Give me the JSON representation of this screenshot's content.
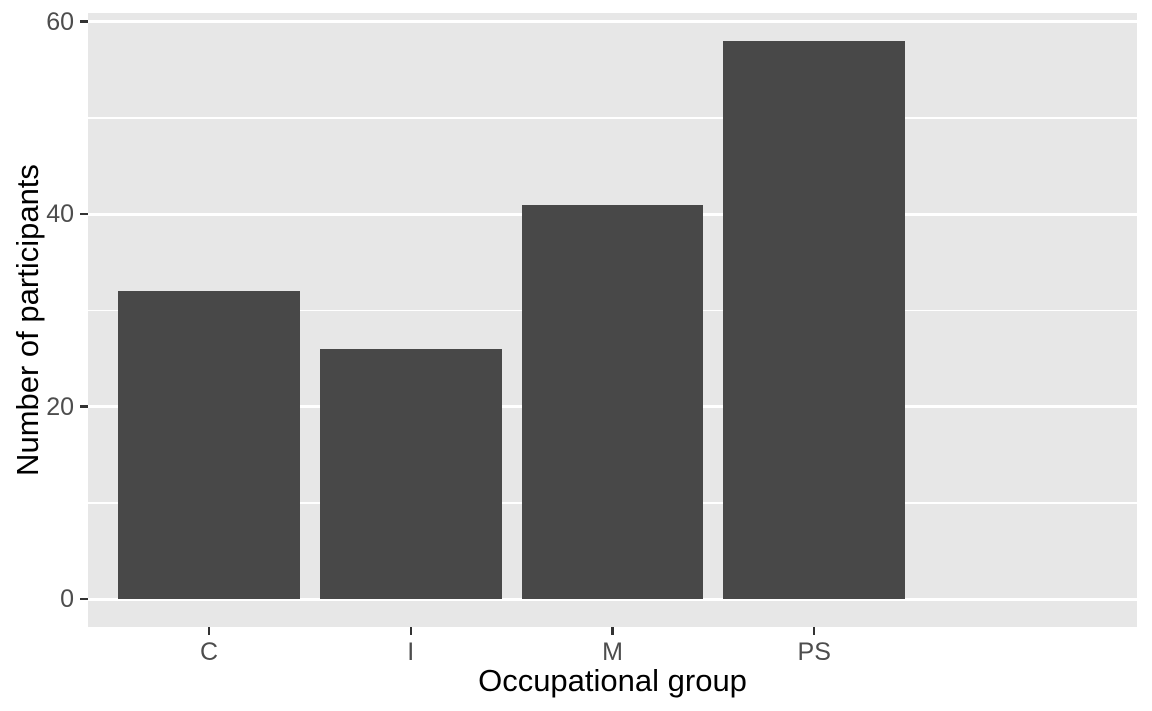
{
  "chart_data": {
    "type": "bar",
    "title": "",
    "xlabel": "Occupational group",
    "ylabel": "Number of participants",
    "categories": [
      "C",
      "I",
      "M",
      "PS"
    ],
    "values": [
      32,
      26,
      41,
      58
    ],
    "ylim": [
      -2.9,
      60.9
    ],
    "y_major_ticks": [
      0,
      20,
      40,
      60
    ],
    "y_minor_gridlines": [
      10,
      30,
      50
    ],
    "grid": "on",
    "legend": "none",
    "bar_relative_width": 0.9,
    "x_padding_units": 0.6,
    "style": {
      "bar_fill": "#484848",
      "panel_background": "#e7e7e7",
      "major_gridline_color": "#ffffff",
      "minor_gridline_color": "#ffffff",
      "tick_label_color": "#4d4d4d",
      "axis_title_color": "#000000",
      "tick_mark_color": "#333333",
      "figure_background": "#ffffff"
    }
  }
}
